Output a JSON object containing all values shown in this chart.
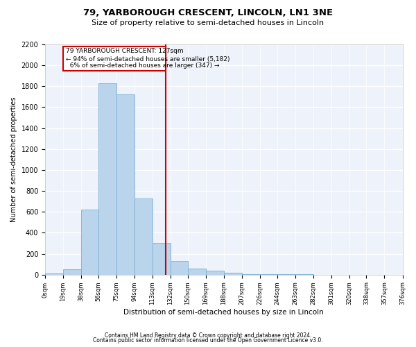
{
  "title": "79, YARBOROUGH CRESCENT, LINCOLN, LN1 3NE",
  "subtitle": "Size of property relative to semi-detached houses in Lincoln",
  "xlabel": "Distribution of semi-detached houses by size in Lincoln",
  "ylabel": "Number of semi-detached properties",
  "footer_line1": "Contains HM Land Registry data © Crown copyright and database right 2024.",
  "footer_line2": "Contains public sector information licensed under the Open Government Licence v3.0.",
  "property_size": 127,
  "smaller_pct": 94,
  "smaller_count": 5182,
  "larger_pct": 6,
  "larger_count": 347,
  "bin_edges": [
    0,
    19,
    38,
    56,
    75,
    94,
    113,
    132,
    150,
    169,
    188,
    207,
    226,
    244,
    263,
    282,
    301,
    320,
    338,
    357,
    376
  ],
  "bar_heights": [
    10,
    50,
    620,
    1830,
    1720,
    730,
    300,
    130,
    60,
    40,
    20,
    5,
    5,
    2,
    2,
    0,
    0,
    0,
    0,
    0
  ],
  "bar_color": "#bad4ec",
  "bar_edge_color": "#7aafd4",
  "red_line_color": "#cc0000",
  "box_edge_color": "#cc0000",
  "box_face_color": "white",
  "background_color": "#eef2fa",
  "grid_color": "white",
  "ylim": [
    0,
    2200
  ],
  "yticks": [
    0,
    200,
    400,
    600,
    800,
    1000,
    1200,
    1400,
    1600,
    1800,
    2000,
    2200
  ],
  "tick_labels": [
    "0sqm",
    "19sqm",
    "38sqm",
    "56sqm",
    "75sqm",
    "94sqm",
    "113sqm",
    "132sqm",
    "150sqm",
    "169sqm",
    "188sqm",
    "207sqm",
    "226sqm",
    "244sqm",
    "263sqm",
    "282sqm",
    "301sqm",
    "320sqm",
    "338sqm",
    "357sqm",
    "376sqm"
  ]
}
